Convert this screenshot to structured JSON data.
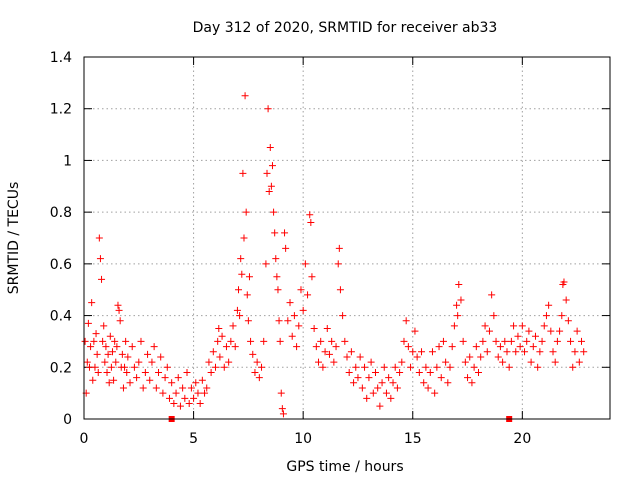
{
  "chart_data": {
    "type": "scatter",
    "title": "Day 312 of 2020, SRMTID for receiver ab33",
    "xlabel": "GPS time / hours",
    "ylabel": "SRMTID / TECUs",
    "xlim": [
      0,
      24
    ],
    "ylim": [
      0,
      1.4
    ],
    "x_ticks": [
      0,
      5,
      10,
      15,
      20
    ],
    "x_tick_labels": [
      "0",
      "5",
      "10",
      "15",
      "20"
    ],
    "y_ticks": [
      0,
      0.2,
      0.4,
      0.6,
      0.8,
      1.0,
      1.2,
      1.4
    ],
    "y_tick_labels": [
      "0",
      "0.2",
      "0.4",
      "0.6",
      "0.8",
      "1",
      "1.2",
      "1.4"
    ],
    "grid": true,
    "marker": "plus",
    "color": "#ff0000",
    "gap_markers_x": [
      4.0,
      19.4
    ],
    "series": [
      {
        "name": "SRMTID",
        "points": [
          [
            0.05,
            0.3
          ],
          [
            0.1,
            0.1
          ],
          [
            0.15,
            0.22
          ],
          [
            0.2,
            0.37
          ],
          [
            0.25,
            0.2
          ],
          [
            0.3,
            0.28
          ],
          [
            0.35,
            0.45
          ],
          [
            0.4,
            0.15
          ],
          [
            0.45,
            0.3
          ],
          [
            0.5,
            0.2
          ],
          [
            0.55,
            0.33
          ],
          [
            0.6,
            0.25
          ],
          [
            0.65,
            0.18
          ],
          [
            0.7,
            0.7
          ],
          [
            0.75,
            0.62
          ],
          [
            0.8,
            0.54
          ],
          [
            0.85,
            0.3
          ],
          [
            0.9,
            0.36
          ],
          [
            0.95,
            0.22
          ],
          [
            1.0,
            0.28
          ],
          [
            1.05,
            0.18
          ],
          [
            1.1,
            0.25
          ],
          [
            1.15,
            0.14
          ],
          [
            1.2,
            0.32
          ],
          [
            1.25,
            0.2
          ],
          [
            1.3,
            0.26
          ],
          [
            1.35,
            0.15
          ],
          [
            1.4,
            0.3
          ],
          [
            1.45,
            0.22
          ],
          [
            1.5,
            0.28
          ],
          [
            1.55,
            0.44
          ],
          [
            1.6,
            0.42
          ],
          [
            1.65,
            0.38
          ],
          [
            1.7,
            0.2
          ],
          [
            1.75,
            0.25
          ],
          [
            1.8,
            0.12
          ],
          [
            1.85,
            0.2
          ],
          [
            1.9,
            0.3
          ],
          [
            1.95,
            0.18
          ],
          [
            2.0,
            0.24
          ],
          [
            2.1,
            0.14
          ],
          [
            2.2,
            0.28
          ],
          [
            2.3,
            0.2
          ],
          [
            2.4,
            0.16
          ],
          [
            2.5,
            0.22
          ],
          [
            2.6,
            0.3
          ],
          [
            2.7,
            0.12
          ],
          [
            2.8,
            0.18
          ],
          [
            2.9,
            0.25
          ],
          [
            3.0,
            0.15
          ],
          [
            3.1,
            0.22
          ],
          [
            3.2,
            0.28
          ],
          [
            3.3,
            0.12
          ],
          [
            3.4,
            0.18
          ],
          [
            3.5,
            0.24
          ],
          [
            3.6,
            0.1
          ],
          [
            3.7,
            0.16
          ],
          [
            3.8,
            0.2
          ],
          [
            3.9,
            0.08
          ],
          [
            4.0,
            0.14
          ],
          [
            4.1,
            0.06
          ],
          [
            4.2,
            0.1
          ],
          [
            4.3,
            0.16
          ],
          [
            4.4,
            0.05
          ],
          [
            4.5,
            0.12
          ],
          [
            4.6,
            0.08
          ],
          [
            4.7,
            0.18
          ],
          [
            4.8,
            0.06
          ],
          [
            4.9,
            0.12
          ],
          [
            5.0,
            0.08
          ],
          [
            5.1,
            0.14
          ],
          [
            5.2,
            0.1
          ],
          [
            5.3,
            0.06
          ],
          [
            5.4,
            0.15
          ],
          [
            5.5,
            0.1
          ],
          [
            5.6,
            0.12
          ],
          [
            5.7,
            0.22
          ],
          [
            5.8,
            0.18
          ],
          [
            5.9,
            0.26
          ],
          [
            6.0,
            0.2
          ],
          [
            6.1,
            0.3
          ],
          [
            6.15,
            0.35
          ],
          [
            6.2,
            0.24
          ],
          [
            6.3,
            0.32
          ],
          [
            6.4,
            0.2
          ],
          [
            6.5,
            0.28
          ],
          [
            6.6,
            0.22
          ],
          [
            6.7,
            0.3
          ],
          [
            6.8,
            0.36
          ],
          [
            6.9,
            0.28
          ],
          [
            7.0,
            0.42
          ],
          [
            7.05,
            0.5
          ],
          [
            7.1,
            0.4
          ],
          [
            7.15,
            0.62
          ],
          [
            7.2,
            0.56
          ],
          [
            7.25,
            0.95
          ],
          [
            7.3,
            0.7
          ],
          [
            7.35,
            1.25
          ],
          [
            7.4,
            0.8
          ],
          [
            7.45,
            0.48
          ],
          [
            7.5,
            0.38
          ],
          [
            7.55,
            0.55
          ],
          [
            7.6,
            0.3
          ],
          [
            7.7,
            0.25
          ],
          [
            7.8,
            0.18
          ],
          [
            7.9,
            0.22
          ],
          [
            8.0,
            0.16
          ],
          [
            8.1,
            0.2
          ],
          [
            8.2,
            0.3
          ],
          [
            8.3,
            0.6
          ],
          [
            8.35,
            0.95
          ],
          [
            8.4,
            1.2
          ],
          [
            8.45,
            0.88
          ],
          [
            8.5,
            1.05
          ],
          [
            8.55,
            0.9
          ],
          [
            8.6,
            0.98
          ],
          [
            8.65,
            0.8
          ],
          [
            8.7,
            0.72
          ],
          [
            8.75,
            0.62
          ],
          [
            8.8,
            0.55
          ],
          [
            8.85,
            0.5
          ],
          [
            8.9,
            0.38
          ],
          [
            8.95,
            0.3
          ],
          [
            9.0,
            0.1
          ],
          [
            9.05,
            0.04
          ],
          [
            9.1,
            0.02
          ],
          [
            9.15,
            0.72
          ],
          [
            9.2,
            0.66
          ],
          [
            9.3,
            0.38
          ],
          [
            9.4,
            0.45
          ],
          [
            9.5,
            0.32
          ],
          [
            9.6,
            0.4
          ],
          [
            9.7,
            0.28
          ],
          [
            9.8,
            0.36
          ],
          [
            9.9,
            0.5
          ],
          [
            10.0,
            0.42
          ],
          [
            10.1,
            0.6
          ],
          [
            10.2,
            0.48
          ],
          [
            10.3,
            0.79
          ],
          [
            10.35,
            0.76
          ],
          [
            10.4,
            0.55
          ],
          [
            10.5,
            0.35
          ],
          [
            10.6,
            0.28
          ],
          [
            10.7,
            0.22
          ],
          [
            10.8,
            0.3
          ],
          [
            10.9,
            0.2
          ],
          [
            11.0,
            0.26
          ],
          [
            11.1,
            0.35
          ],
          [
            11.2,
            0.25
          ],
          [
            11.3,
            0.3
          ],
          [
            11.4,
            0.22
          ],
          [
            11.5,
            0.28
          ],
          [
            11.6,
            0.6
          ],
          [
            11.65,
            0.66
          ],
          [
            11.7,
            0.5
          ],
          [
            11.8,
            0.4
          ],
          [
            11.9,
            0.3
          ],
          [
            12.0,
            0.24
          ],
          [
            12.1,
            0.18
          ],
          [
            12.2,
            0.26
          ],
          [
            12.3,
            0.14
          ],
          [
            12.4,
            0.2
          ],
          [
            12.5,
            0.16
          ],
          [
            12.6,
            0.24
          ],
          [
            12.7,
            0.12
          ],
          [
            12.8,
            0.2
          ],
          [
            12.9,
            0.08
          ],
          [
            13.0,
            0.16
          ],
          [
            13.1,
            0.22
          ],
          [
            13.2,
            0.1
          ],
          [
            13.3,
            0.18
          ],
          [
            13.4,
            0.12
          ],
          [
            13.5,
            0.05
          ],
          [
            13.6,
            0.14
          ],
          [
            13.7,
            0.2
          ],
          [
            13.8,
            0.1
          ],
          [
            13.9,
            0.16
          ],
          [
            14.0,
            0.08
          ],
          [
            14.1,
            0.14
          ],
          [
            14.2,
            0.2
          ],
          [
            14.3,
            0.12
          ],
          [
            14.4,
            0.18
          ],
          [
            14.5,
            0.22
          ],
          [
            14.6,
            0.3
          ],
          [
            14.7,
            0.38
          ],
          [
            14.8,
            0.28
          ],
          [
            14.9,
            0.2
          ],
          [
            15.0,
            0.26
          ],
          [
            15.1,
            0.34
          ],
          [
            15.2,
            0.24
          ],
          [
            15.3,
            0.18
          ],
          [
            15.4,
            0.26
          ],
          [
            15.5,
            0.14
          ],
          [
            15.6,
            0.2
          ],
          [
            15.7,
            0.12
          ],
          [
            15.8,
            0.18
          ],
          [
            15.9,
            0.26
          ],
          [
            16.0,
            0.1
          ],
          [
            16.1,
            0.2
          ],
          [
            16.2,
            0.28
          ],
          [
            16.3,
            0.16
          ],
          [
            16.4,
            0.3
          ],
          [
            16.5,
            0.22
          ],
          [
            16.6,
            0.14
          ],
          [
            16.7,
            0.2
          ],
          [
            16.8,
            0.28
          ],
          [
            16.9,
            0.36
          ],
          [
            17.0,
            0.44
          ],
          [
            17.05,
            0.4
          ],
          [
            17.1,
            0.52
          ],
          [
            17.2,
            0.46
          ],
          [
            17.3,
            0.3
          ],
          [
            17.4,
            0.22
          ],
          [
            17.5,
            0.16
          ],
          [
            17.6,
            0.24
          ],
          [
            17.7,
            0.14
          ],
          [
            17.8,
            0.2
          ],
          [
            17.9,
            0.28
          ],
          [
            18.0,
            0.18
          ],
          [
            18.1,
            0.24
          ],
          [
            18.2,
            0.3
          ],
          [
            18.3,
            0.36
          ],
          [
            18.4,
            0.26
          ],
          [
            18.5,
            0.34
          ],
          [
            18.6,
            0.48
          ],
          [
            18.7,
            0.4
          ],
          [
            18.8,
            0.3
          ],
          [
            18.9,
            0.24
          ],
          [
            19.0,
            0.28
          ],
          [
            19.1,
            0.22
          ],
          [
            19.2,
            0.3
          ],
          [
            19.3,
            0.26
          ],
          [
            19.4,
            0.2
          ],
          [
            19.5,
            0.3
          ],
          [
            19.6,
            0.36
          ],
          [
            19.7,
            0.26
          ],
          [
            19.8,
            0.32
          ],
          [
            19.9,
            0.28
          ],
          [
            20.0,
            0.36
          ],
          [
            20.1,
            0.26
          ],
          [
            20.2,
            0.3
          ],
          [
            20.3,
            0.34
          ],
          [
            20.4,
            0.22
          ],
          [
            20.5,
            0.28
          ],
          [
            20.6,
            0.32
          ],
          [
            20.7,
            0.2
          ],
          [
            20.8,
            0.26
          ],
          [
            20.9,
            0.3
          ],
          [
            21.0,
            0.36
          ],
          [
            21.1,
            0.4
          ],
          [
            21.2,
            0.44
          ],
          [
            21.3,
            0.34
          ],
          [
            21.4,
            0.26
          ],
          [
            21.5,
            0.22
          ],
          [
            21.6,
            0.3
          ],
          [
            21.7,
            0.34
          ],
          [
            21.8,
            0.4
          ],
          [
            21.85,
            0.52
          ],
          [
            21.9,
            0.53
          ],
          [
            22.0,
            0.46
          ],
          [
            22.1,
            0.38
          ],
          [
            22.2,
            0.3
          ],
          [
            22.3,
            0.2
          ],
          [
            22.4,
            0.26
          ],
          [
            22.5,
            0.34
          ],
          [
            22.6,
            0.22
          ],
          [
            22.7,
            0.3
          ],
          [
            22.8,
            0.26
          ]
        ]
      }
    ]
  }
}
